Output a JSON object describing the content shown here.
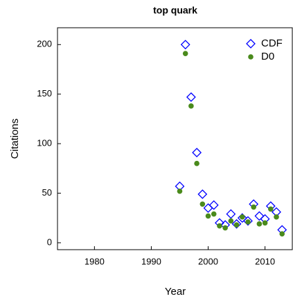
{
  "chart_data": {
    "type": "scatter",
    "title": "top quark",
    "x_label": "Year",
    "y_label": "Citations",
    "x": [
      1995,
      1996,
      1997,
      1998,
      1999,
      2000,
      2001,
      2002,
      2003,
      2004,
      2005,
      2006,
      2007,
      2008,
      2009,
      2010,
      2011,
      2012,
      2013
    ],
    "series": [
      {
        "name": "CDF",
        "color": "#0000ff",
        "marker": "diamond",
        "values": [
          57,
          200,
          147,
          91,
          49,
          35,
          38,
          20,
          18,
          29,
          19,
          25,
          22,
          39,
          27,
          24,
          37,
          31,
          13
        ]
      },
      {
        "name": "D0",
        "color": "#4a8a1c",
        "marker": "circle",
        "values": [
          52,
          191,
          138,
          80,
          39,
          27,
          29,
          17,
          15,
          22,
          18,
          26,
          21,
          36,
          19,
          20,
          34,
          26,
          9
        ]
      }
    ],
    "xlim": [
      1973.5,
      2014.8
    ],
    "xticks": [
      1980,
      1990,
      2000,
      2010
    ],
    "ylim": [
      -7,
      217
    ],
    "yticks": [
      0,
      50,
      100,
      150,
      200
    ],
    "legend": "upper right"
  }
}
